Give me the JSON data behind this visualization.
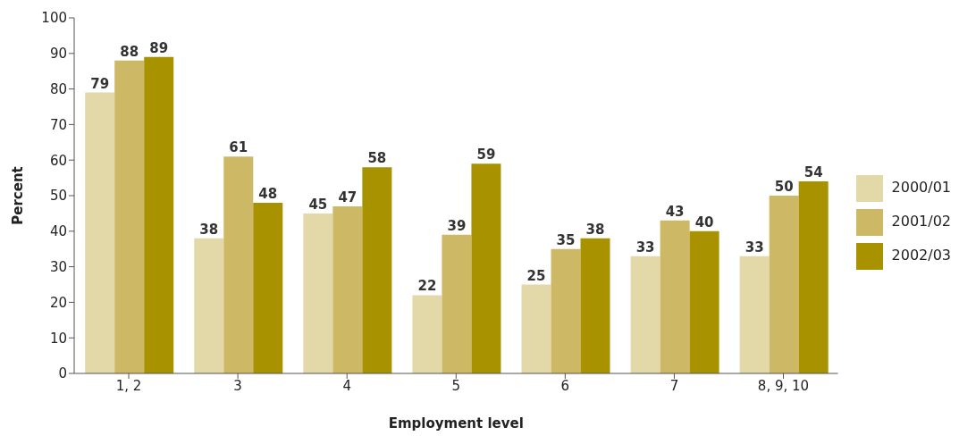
{
  "chart_data": {
    "type": "bar",
    "xlabel": "Employment level",
    "ylabel": "Percent",
    "categories": [
      "1, 2",
      "3",
      "4",
      "5",
      "6",
      "7",
      "8, 9, 10"
    ],
    "series": [
      {
        "name": "2000/01",
        "color": "#e3d8a8",
        "values": [
          79,
          38,
          45,
          22,
          25,
          33,
          33
        ]
      },
      {
        "name": "2001/02",
        "color": "#cdb865",
        "values": [
          88,
          61,
          47,
          39,
          35,
          43,
          50
        ]
      },
      {
        "name": "2002/03",
        "color": "#a89200",
        "values": [
          89,
          48,
          58,
          59,
          38,
          40,
          54
        ]
      }
    ],
    "ylim": [
      0,
      100
    ],
    "yticks": [
      0,
      10,
      20,
      30,
      40,
      50,
      60,
      70,
      80,
      90,
      100
    ],
    "grid": false,
    "legend": "right",
    "data_labels": true
  }
}
